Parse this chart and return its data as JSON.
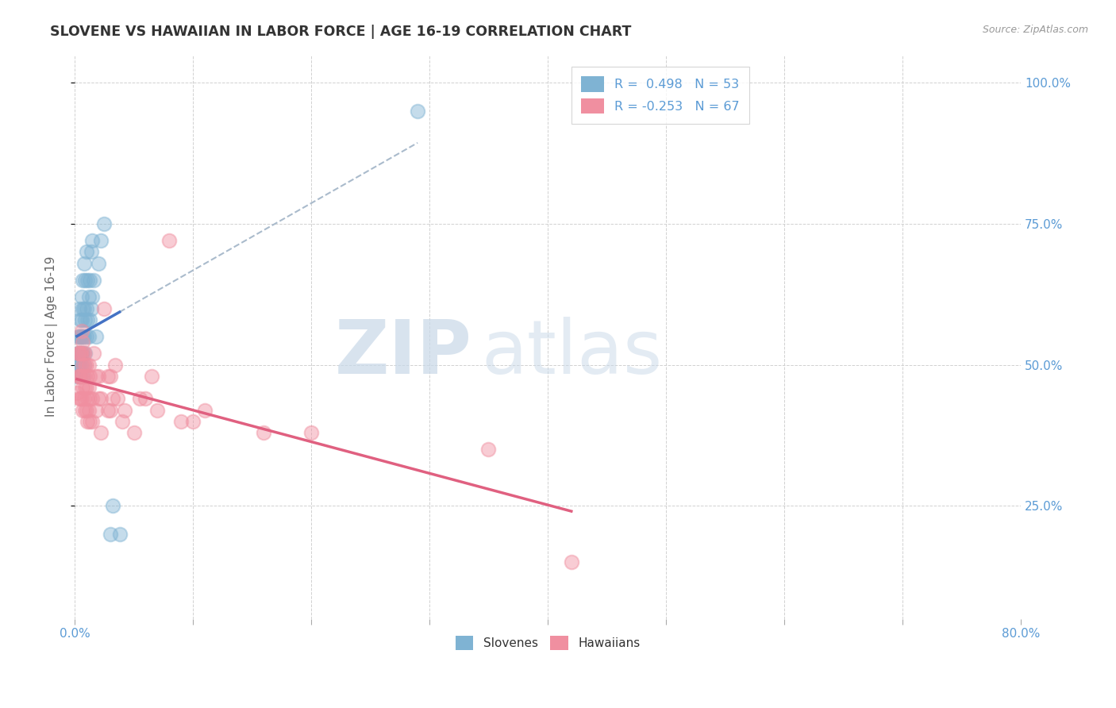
{
  "title": "SLOVENE VS HAWAIIAN IN LABOR FORCE | AGE 16-19 CORRELATION CHART",
  "source_text": "Source: ZipAtlas.com",
  "ylabel": "In Labor Force | Age 16-19",
  "ytick_labels": [
    "25.0%",
    "50.0%",
    "75.0%",
    "100.0%"
  ],
  "ytick_values": [
    0.25,
    0.5,
    0.75,
    1.0
  ],
  "xmin": 0.0,
  "xmax": 0.8,
  "ymin": 0.05,
  "ymax": 1.05,
  "legend_r1": "R =  0.498   N = 53",
  "legend_r2": "R = -0.253   N = 67",
  "slovene_color": "#7fb3d3",
  "hawaiian_color": "#f08fa0",
  "trend_slovene_color": "#4472c4",
  "trend_hawaiian_color": "#e06080",
  "slovene_points": [
    [
      0.002,
      0.48
    ],
    [
      0.003,
      0.5
    ],
    [
      0.003,
      0.52
    ],
    [
      0.003,
      0.55
    ],
    [
      0.004,
      0.48
    ],
    [
      0.004,
      0.5
    ],
    [
      0.004,
      0.52
    ],
    [
      0.004,
      0.55
    ],
    [
      0.004,
      0.6
    ],
    [
      0.005,
      0.48
    ],
    [
      0.005,
      0.5
    ],
    [
      0.005,
      0.52
    ],
    [
      0.005,
      0.55
    ],
    [
      0.005,
      0.58
    ],
    [
      0.006,
      0.5
    ],
    [
      0.006,
      0.52
    ],
    [
      0.006,
      0.55
    ],
    [
      0.006,
      0.58
    ],
    [
      0.006,
      0.62
    ],
    [
      0.007,
      0.48
    ],
    [
      0.007,
      0.52
    ],
    [
      0.007,
      0.55
    ],
    [
      0.007,
      0.6
    ],
    [
      0.007,
      0.65
    ],
    [
      0.008,
      0.5
    ],
    [
      0.008,
      0.55
    ],
    [
      0.008,
      0.6
    ],
    [
      0.008,
      0.68
    ],
    [
      0.009,
      0.52
    ],
    [
      0.009,
      0.58
    ],
    [
      0.009,
      0.65
    ],
    [
      0.01,
      0.55
    ],
    [
      0.01,
      0.6
    ],
    [
      0.01,
      0.7
    ],
    [
      0.011,
      0.58
    ],
    [
      0.011,
      0.65
    ],
    [
      0.012,
      0.55
    ],
    [
      0.012,
      0.62
    ],
    [
      0.013,
      0.58
    ],
    [
      0.013,
      0.65
    ],
    [
      0.014,
      0.6
    ],
    [
      0.014,
      0.7
    ],
    [
      0.015,
      0.62
    ],
    [
      0.015,
      0.72
    ],
    [
      0.016,
      0.65
    ],
    [
      0.018,
      0.55
    ],
    [
      0.02,
      0.68
    ],
    [
      0.022,
      0.72
    ],
    [
      0.025,
      0.75
    ],
    [
      0.03,
      0.2
    ],
    [
      0.032,
      0.25
    ],
    [
      0.038,
      0.2
    ],
    [
      0.29,
      0.95
    ]
  ],
  "hawaiian_points": [
    [
      0.002,
      0.45
    ],
    [
      0.003,
      0.48
    ],
    [
      0.003,
      0.52
    ],
    [
      0.004,
      0.44
    ],
    [
      0.004,
      0.48
    ],
    [
      0.004,
      0.52
    ],
    [
      0.005,
      0.44
    ],
    [
      0.005,
      0.48
    ],
    [
      0.005,
      0.52
    ],
    [
      0.006,
      0.44
    ],
    [
      0.006,
      0.48
    ],
    [
      0.006,
      0.52
    ],
    [
      0.006,
      0.56
    ],
    [
      0.007,
      0.42
    ],
    [
      0.007,
      0.46
    ],
    [
      0.007,
      0.5
    ],
    [
      0.007,
      0.54
    ],
    [
      0.008,
      0.44
    ],
    [
      0.008,
      0.48
    ],
    [
      0.008,
      0.52
    ],
    [
      0.009,
      0.42
    ],
    [
      0.009,
      0.46
    ],
    [
      0.009,
      0.5
    ],
    [
      0.01,
      0.42
    ],
    [
      0.01,
      0.46
    ],
    [
      0.01,
      0.5
    ],
    [
      0.011,
      0.4
    ],
    [
      0.011,
      0.44
    ],
    [
      0.011,
      0.48
    ],
    [
      0.012,
      0.42
    ],
    [
      0.012,
      0.46
    ],
    [
      0.012,
      0.5
    ],
    [
      0.013,
      0.4
    ],
    [
      0.013,
      0.44
    ],
    [
      0.013,
      0.48
    ],
    [
      0.015,
      0.4
    ],
    [
      0.015,
      0.44
    ],
    [
      0.016,
      0.52
    ],
    [
      0.018,
      0.42
    ],
    [
      0.018,
      0.48
    ],
    [
      0.02,
      0.44
    ],
    [
      0.02,
      0.48
    ],
    [
      0.022,
      0.38
    ],
    [
      0.022,
      0.44
    ],
    [
      0.025,
      0.6
    ],
    [
      0.028,
      0.42
    ],
    [
      0.028,
      0.48
    ],
    [
      0.03,
      0.42
    ],
    [
      0.03,
      0.48
    ],
    [
      0.032,
      0.44
    ],
    [
      0.034,
      0.5
    ],
    [
      0.036,
      0.44
    ],
    [
      0.04,
      0.4
    ],
    [
      0.042,
      0.42
    ],
    [
      0.05,
      0.38
    ],
    [
      0.055,
      0.44
    ],
    [
      0.06,
      0.44
    ],
    [
      0.065,
      0.48
    ],
    [
      0.07,
      0.42
    ],
    [
      0.08,
      0.72
    ],
    [
      0.09,
      0.4
    ],
    [
      0.1,
      0.4
    ],
    [
      0.11,
      0.42
    ],
    [
      0.16,
      0.38
    ],
    [
      0.2,
      0.38
    ],
    [
      0.35,
      0.35
    ],
    [
      0.42,
      0.15
    ]
  ]
}
